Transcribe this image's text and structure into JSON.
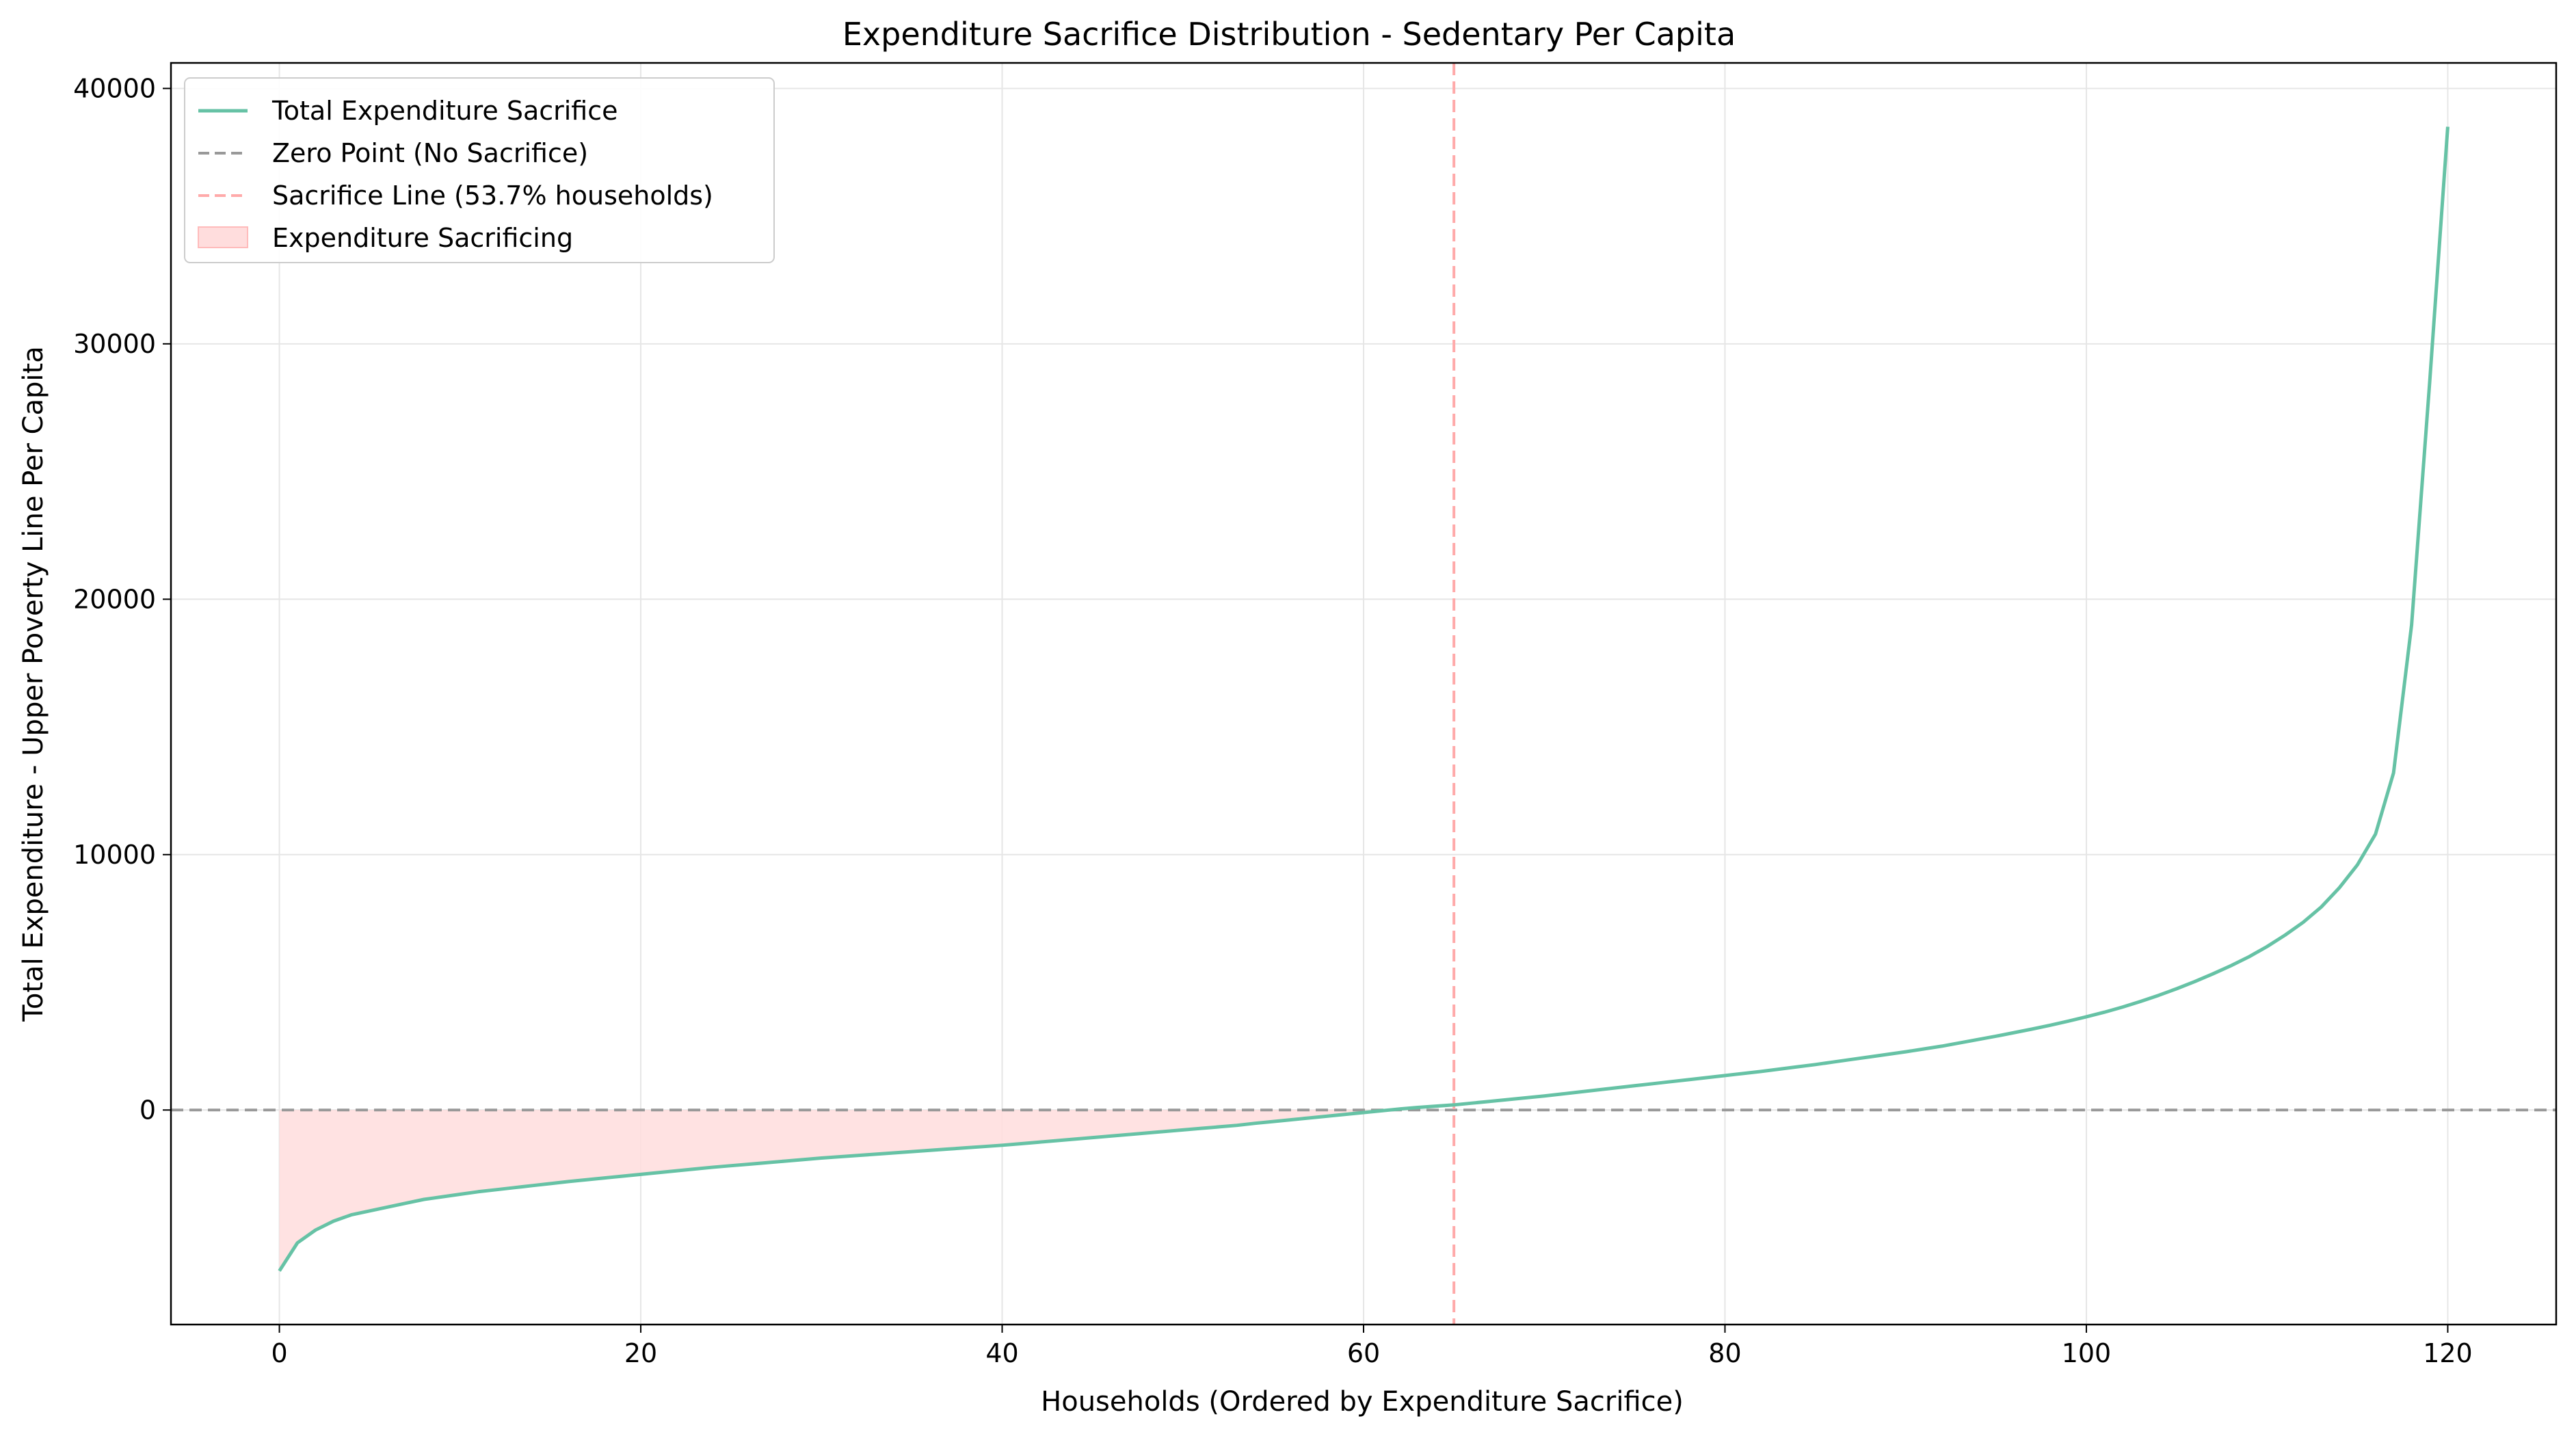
{
  "chart_data": {
    "type": "line",
    "title": "Expenditure Sacrifice Distribution - Sedentary Per Capita",
    "xlabel": "Households (Ordered by Expenditure Sacrifice)",
    "ylabel": "Total Expenditure - Upper Poverty Line Per Capita",
    "xlim": [
      -6,
      126
    ],
    "ylim": [
      -8400,
      41000
    ],
    "xticks": [
      0,
      20,
      40,
      60,
      80,
      100,
      120
    ],
    "yticks": [
      0,
      10000,
      20000,
      30000,
      40000
    ],
    "grid": true,
    "legend_position": "top-left",
    "legend": [
      {
        "label": "Total Expenditure Sacrifice",
        "style": "line",
        "color": "#66c2a5"
      },
      {
        "label": "Zero Point (No Sacrifice)",
        "style": "dashed",
        "color": "#999999"
      },
      {
        "label": "Sacrifice Line (53.7% households)",
        "style": "dashed",
        "color": "#ffaaaa"
      },
      {
        "label": "Expenditure Sacrificing",
        "style": "patch",
        "color": "#ffdddd"
      }
    ],
    "zero_line": 0,
    "sacrifice_line_x": 65,
    "series": [
      {
        "name": "Total Expenditure Sacrifice",
        "color": "#66c2a5",
        "x": [
          0,
          1,
          2,
          3,
          4,
          5,
          6,
          7,
          8,
          9,
          10,
          11,
          12,
          13,
          14,
          15,
          16,
          17,
          18,
          19,
          20,
          21,
          22,
          23,
          24,
          25,
          26,
          27,
          28,
          29,
          30,
          31,
          32,
          33,
          34,
          35,
          36,
          37,
          38,
          39,
          40,
          41,
          42,
          43,
          44,
          45,
          46,
          47,
          48,
          49,
          50,
          51,
          52,
          53,
          54,
          55,
          56,
          57,
          58,
          59,
          60,
          61,
          62,
          63,
          64,
          65,
          66,
          67,
          68,
          69,
          70,
          71,
          72,
          73,
          74,
          75,
          76,
          77,
          78,
          79,
          80,
          81,
          82,
          83,
          84,
          85,
          86,
          87,
          88,
          89,
          90,
          91,
          92,
          93,
          94,
          95,
          96,
          97,
          98,
          99,
          100,
          101,
          102,
          103,
          104,
          105,
          106,
          107,
          108,
          109,
          110,
          111,
          112,
          113,
          114,
          115,
          116,
          117,
          118,
          119,
          120
        ],
        "y": [
          -6300,
          -5200,
          -4700,
          -4350,
          -4100,
          -3950,
          -3800,
          -3650,
          -3500,
          -3400,
          -3300,
          -3200,
          -3120,
          -3040,
          -2960,
          -2880,
          -2800,
          -2730,
          -2660,
          -2590,
          -2520,
          -2450,
          -2380,
          -2310,
          -2240,
          -2180,
          -2120,
          -2060,
          -2000,
          -1940,
          -1880,
          -1830,
          -1780,
          -1730,
          -1680,
          -1630,
          -1580,
          -1530,
          -1480,
          -1430,
          -1380,
          -1320,
          -1260,
          -1200,
          -1140,
          -1080,
          -1020,
          -960,
          -900,
          -840,
          -780,
          -720,
          -660,
          -600,
          -520,
          -450,
          -380,
          -310,
          -240,
          -170,
          -100,
          -30,
          40,
          100,
          150,
          200,
          270,
          340,
          410,
          480,
          550,
          630,
          710,
          790,
          870,
          950,
          1030,
          1110,
          1190,
          1270,
          1350,
          1430,
          1510,
          1600,
          1690,
          1780,
          1880,
          1980,
          2080,
          2180,
          2280,
          2390,
          2500,
          2630,
          2760,
          2890,
          3030,
          3170,
          3320,
          3480,
          3650,
          3830,
          4030,
          4250,
          4490,
          4750,
          5030,
          5330,
          5650,
          6000,
          6400,
          6850,
          7350,
          7950,
          8700,
          9600,
          10800,
          13200,
          19000,
          28500,
          38500
        ]
      }
    ]
  }
}
